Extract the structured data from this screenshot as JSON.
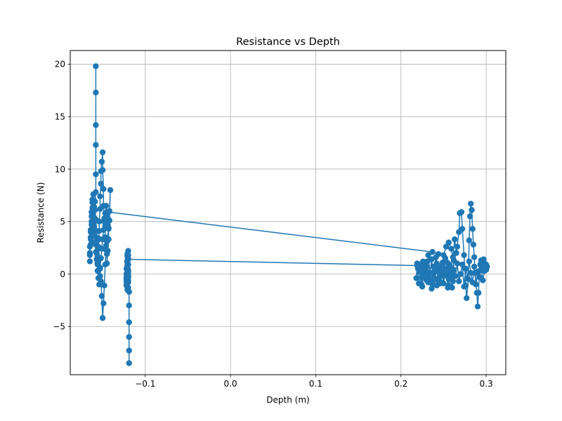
{
  "chart_data": {
    "type": "line",
    "title": "Resistance vs Depth",
    "xlabel": "Depth (m)",
    "ylabel": "Resistance (N)",
    "xlim": [
      -0.188,
      0.323
    ],
    "ylim": [
      -9.6,
      21.3
    ],
    "x_ticks": [
      -0.1,
      0.0,
      0.1,
      0.2,
      0.3
    ],
    "x_tick_labels": [
      "−0.1",
      "0.0",
      "0.1",
      "0.2",
      "0.3"
    ],
    "y_ticks": [
      -5,
      0,
      5,
      10,
      15,
      20
    ],
    "y_tick_labels": [
      "−5",
      "0",
      "5",
      "10",
      "15",
      "20"
    ],
    "grid": true,
    "color": "#1f77b4",
    "marker": "circle",
    "series": [
      {
        "x": [
          -0.158,
          -0.158,
          -0.158,
          -0.158,
          -0.158,
          -0.158,
          -0.159,
          -0.16,
          -0.161,
          -0.161,
          -0.16,
          -0.159,
          -0.158,
          -0.157,
          -0.156,
          -0.156,
          -0.155,
          -0.155,
          -0.154,
          -0.154,
          -0.153,
          -0.153,
          -0.152,
          -0.152,
          -0.151,
          -0.15,
          -0.15,
          -0.149,
          -0.149,
          -0.148,
          -0.147,
          -0.147,
          -0.146,
          -0.145,
          -0.145,
          -0.144,
          -0.143,
          -0.143,
          -0.142,
          -0.141,
          -0.142,
          -0.143,
          -0.145,
          -0.146,
          -0.147,
          -0.148,
          -0.149,
          -0.15,
          -0.151,
          -0.152,
          -0.153,
          -0.154,
          -0.155,
          -0.156,
          -0.157,
          -0.158,
          -0.159,
          -0.16,
          -0.161,
          -0.162,
          -0.163,
          -0.163,
          -0.164,
          -0.164,
          -0.164,
          -0.165,
          -0.165,
          -0.165,
          -0.165,
          -0.164,
          -0.164,
          -0.163,
          -0.163,
          -0.162,
          -0.162,
          -0.161,
          -0.16,
          -0.16,
          -0.159,
          -0.158,
          -0.157,
          -0.156,
          -0.156,
          -0.155,
          -0.154,
          -0.153,
          -0.153,
          -0.152,
          -0.151,
          -0.15,
          -0.149,
          -0.148,
          -0.147,
          -0.146,
          -0.145,
          -0.144,
          -0.143,
          -0.143,
          0.237,
          0.244,
          0.25,
          0.253,
          0.256,
          0.259,
          0.261,
          0.263,
          0.265,
          0.266,
          0.268,
          0.269,
          0.271,
          0.272,
          0.274,
          0.276,
          0.277,
          0.279,
          0.28,
          0.281,
          0.282,
          0.283,
          0.284,
          0.285,
          0.286,
          0.287,
          0.289,
          0.29,
          0.291,
          0.292,
          0.293,
          0.294,
          0.295,
          0.296,
          0.297,
          0.298,
          0.3,
          0.301,
          0.3,
          0.298,
          0.296,
          0.294,
          0.292,
          0.29,
          0.288,
          0.286,
          0.284,
          0.282,
          0.28,
          0.278,
          0.276,
          0.274,
          0.272,
          0.27,
          0.268,
          0.266,
          0.264,
          0.262,
          0.26,
          0.258,
          0.256,
          0.254,
          0.252,
          0.25,
          0.248,
          0.246,
          0.244,
          0.242,
          0.24,
          0.238,
          0.236,
          0.234,
          0.232,
          0.23,
          0.228,
          0.226,
          0.224,
          0.222,
          0.22,
          0.218,
          0.219,
          0.221,
          0.223,
          0.225,
          0.227,
          0.229,
          0.231,
          0.233,
          0.235,
          0.237,
          0.239,
          0.241,
          0.243,
          0.245,
          0.247,
          0.249,
          0.251,
          0.253,
          0.255,
          0.257,
          0.259,
          0.261,
          0.262,
          0.26,
          0.258,
          0.256,
          0.254,
          0.252,
          0.25,
          0.248,
          0.246,
          0.244,
          0.242,
          0.24,
          0.238,
          0.236,
          0.234,
          0.232,
          0.23,
          0.228,
          0.226,
          0.224,
          0.222,
          0.22,
          0.219,
          -0.12,
          -0.12,
          -0.12,
          -0.121,
          -0.121,
          -0.121,
          -0.121,
          -0.122,
          -0.122,
          -0.122,
          -0.122,
          -0.122,
          -0.121,
          -0.121,
          -0.12,
          -0.12,
          -0.12,
          -0.12,
          -0.12,
          -0.12,
          -0.12,
          -0.12,
          -0.121,
          -0.121,
          -0.121,
          -0.122,
          -0.122,
          -0.122,
          -0.121,
          -0.121,
          -0.12,
          -0.12,
          -0.12,
          -0.119,
          -0.119,
          -0.119,
          -0.119,
          -0.119,
          -0.119
        ],
        "y": [
          19.8,
          17.3,
          14.2,
          12.3,
          9.5,
          7.8,
          6.9,
          6.4,
          5.9,
          4.8,
          3.9,
          3.0,
          2.1,
          1.4,
          0.9,
          1.7,
          2.6,
          3.4,
          4.1,
          5.0,
          6.2,
          7.4,
          8.6,
          9.8,
          10.7,
          11.6,
          9.9,
          8.1,
          6.5,
          5.3,
          4.6,
          3.5,
          2.7,
          1.9,
          1.0,
          2.2,
          3.3,
          4.4,
          5.1,
          8.0,
          6.0,
          4.3,
          3.1,
          2.3,
          0.9,
          -1.1,
          -2.8,
          -4.2,
          -2.1,
          -0.7,
          0.5,
          1.4,
          2.4,
          3.2,
          4.1,
          5.2,
          6.1,
          7.0,
          7.6,
          6.8,
          5.9,
          5.0,
          4.2,
          3.5,
          2.8,
          2.0,
          1.2,
          1.8,
          2.6,
          3.3,
          4.0,
          4.7,
          5.5,
          6.3,
          7.1,
          6.2,
          5.4,
          4.5,
          3.6,
          2.8,
          2.0,
          1.1,
          0.3,
          -0.4,
          -1.0,
          -0.2,
          0.6,
          1.5,
          2.4,
          3.3,
          4.2,
          5.0,
          5.8,
          6.5,
          5.6,
          4.7,
          5.2,
          5.9,
          2.1,
          1.9,
          1.8,
          2.6,
          3.0,
          2.4,
          1.6,
          3.3,
          2.0,
          2.6,
          4.0,
          5.8,
          5.9,
          4.3,
          1.8,
          -1.1,
          -2.3,
          -0.5,
          3.2,
          5.5,
          6.7,
          6.1,
          4.3,
          2.8,
          1.6,
          0.1,
          -1.8,
          -3.1,
          -1.8,
          0.3,
          0.9,
          1.3,
          0.6,
          1.1,
          1.4,
          1.0,
          0.4,
          0.7,
          0.9,
          0.3,
          -0.6,
          0.8,
          -0.3,
          0.2,
          -1.0,
          0.7,
          -0.8,
          0.1,
          1.2,
          -0.4,
          0.5,
          -1.2,
          0.9,
          0.0,
          -0.7,
          1.0,
          -0.2,
          0.4,
          -1.3,
          0.6,
          -0.5,
          1.1,
          0.2,
          -0.9,
          0.8,
          -0.1,
          0.5,
          -1.1,
          0.3,
          -0.6,
          1.4,
          0.0,
          -0.8,
          0.7,
          -0.3,
          0.9,
          -1.0,
          0.2,
          0.6,
          -0.4,
          1.0,
          -0.9,
          0.4,
          -1.2,
          0.8,
          -0.2,
          1.2,
          -0.6,
          0.1,
          -1.0,
          0.7,
          1.6,
          -0.5,
          0.3,
          -0.8,
          1.1,
          -0.1,
          0.5,
          -1.3,
          0.9,
          0.0,
          -0.7,
          1.3,
          -0.3,
          0.6,
          -1.1,
          0.4,
          1.5,
          -0.2,
          0.8,
          -0.9,
          0.2,
          1.0,
          -0.5,
          0.7,
          -1.4,
          0.1,
          1.8,
          -0.6,
          0.4,
          1.2,
          -0.3,
          0.9,
          0.5,
          0.8,
          1.4,
          1.8,
          2.2,
          1.7,
          1.1,
          0.6,
          0.2,
          -0.3,
          -0.7,
          -1.0,
          -0.4,
          0.5,
          1.2,
          1.9,
          1.5,
          0.9,
          0.3,
          -0.2,
          -0.8,
          -1.3,
          -0.6,
          0.1,
          0.8,
          1.3,
          0.7,
          0.0,
          -0.5,
          -1.1,
          -1.5,
          -0.9,
          -0.3,
          0.4,
          -0.2,
          -1.7,
          -3.0,
          -4.6,
          -6.0,
          -7.3,
          -8.5
        ]
      }
    ]
  }
}
